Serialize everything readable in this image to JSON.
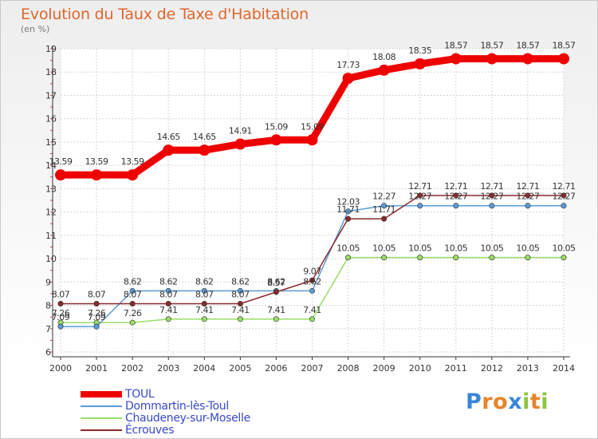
{
  "header": {
    "title": "Evolution du Taux de Taxe d'Habitation",
    "subtitle": "(en %)"
  },
  "chart_data": {
    "type": "line",
    "title": "Evolution du Taux de Taxe d'Habitation",
    "ylabel": "(en %)",
    "xlabel": "",
    "x": [
      "2000",
      "2001",
      "2002",
      "2003",
      "2004",
      "2005",
      "2006",
      "2007",
      "2008",
      "2009",
      "2010",
      "2011",
      "2012",
      "2013",
      "2014"
    ],
    "ylim": [
      6,
      19
    ],
    "yticks": [
      "6",
      "7",
      "8",
      "9",
      "10",
      "11",
      "12",
      "13",
      "14",
      "15",
      "16",
      "17",
      "18",
      "19"
    ],
    "grid": true,
    "legend_position": "bottom-left",
    "series": [
      {
        "name": "TOUL",
        "color": "#ee0000",
        "values": [
          13.59,
          13.59,
          13.59,
          14.65,
          14.65,
          14.91,
          15.09,
          15.09,
          17.73,
          18.08,
          18.35,
          18.57,
          18.57,
          18.57,
          18.57
        ],
        "labels": [
          "13.59",
          "13.59",
          "13.59",
          "14.65",
          "14.65",
          "14.91",
          "15.09",
          "15.09",
          "17.73",
          "18.08",
          "18.35",
          "18.57",
          "18.57",
          "18.57",
          "18.57"
        ]
      },
      {
        "name": "Dommartin-lès-Toul",
        "color": "#5b9bd5",
        "values": [
          7.09,
          7.09,
          8.62,
          8.62,
          8.62,
          8.62,
          8.62,
          8.62,
          12.03,
          12.27,
          12.27,
          12.27,
          12.27,
          12.27,
          12.27
        ],
        "labels": [
          "7.09",
          "7.09",
          "8.62",
          "8.62",
          "8.62",
          "8.62",
          "8.62",
          "8.62",
          "12.03",
          "12.27",
          "12.27",
          "12.27",
          "12.27",
          "12.27",
          "12.27"
        ]
      },
      {
        "name": "Chaudeney-sur-Moselle",
        "color": "#99dd66",
        "values": [
          7.26,
          7.26,
          7.26,
          7.41,
          7.41,
          7.41,
          7.41,
          7.41,
          10.05,
          10.05,
          10.05,
          10.05,
          10.05,
          10.05,
          10.05
        ],
        "labels": [
          "7.26",
          "7.26",
          "7.26",
          "7.41",
          "7.41",
          "7.41",
          "7.41",
          "7.41",
          "10.05",
          "10.05",
          "10.05",
          "10.05",
          "10.05",
          "10.05",
          "10.05"
        ]
      },
      {
        "name": "Écrouves",
        "color": "#8b2a2a",
        "values": [
          8.07,
          8.07,
          8.07,
          8.07,
          8.07,
          8.07,
          8.57,
          9.07,
          11.71,
          11.71,
          12.71,
          12.71,
          12.71,
          12.71,
          12.71
        ],
        "labels": [
          "8.07",
          "8.07",
          "8.07",
          "8.07",
          "8.07",
          "8.07",
          "8.57",
          "9.07",
          "11.71",
          "11.71",
          "12.71",
          "12.71",
          "12.71",
          "12.71",
          "12.71"
        ]
      }
    ]
  },
  "legend": {
    "items": [
      {
        "label": "TOUL",
        "color": "#ee0000"
      },
      {
        "label": "Dommartin-lès-Toul",
        "color": "#5b9bd5"
      },
      {
        "label": "Chaudeney-sur-Moselle",
        "color": "#99dd66"
      },
      {
        "label": "Écrouves",
        "color": "#8b2a2a"
      }
    ]
  },
  "logo": {
    "letters": [
      "P",
      "r",
      "o",
      "x",
      "i",
      "t",
      "i"
    ],
    "colors": [
      "#3a86d8",
      "#e8842a",
      "#e8842a",
      "#3a86d8",
      "#8cc63f",
      "#e8842a",
      "#8cc63f"
    ]
  }
}
